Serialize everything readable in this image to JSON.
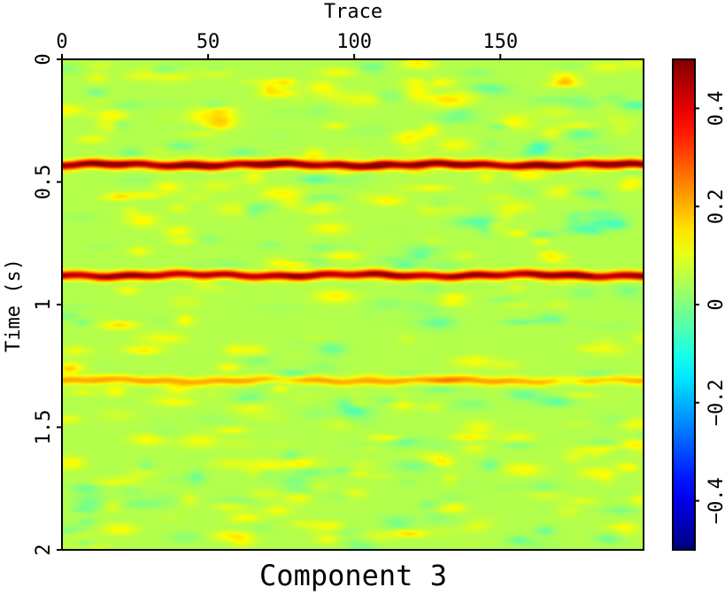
{
  "chart_data": {
    "type": "heatmap",
    "title": "Component 3",
    "xlabel": "Trace",
    "ylabel": "Time (s)",
    "x_axis_position": "top",
    "xlim": [
      0,
      199
    ],
    "ylim": [
      0,
      2
    ],
    "y_inverted": true,
    "x_ticks": [
      0,
      50,
      100,
      150
    ],
    "x_tick_labels": [
      "0",
      "50",
      "100",
      "150"
    ],
    "y_ticks": [
      0,
      0.5,
      1,
      1.5,
      2
    ],
    "y_tick_labels": [
      "0",
      "0.5",
      "1",
      "1.5",
      "2"
    ],
    "colorbar": {
      "colormap": "jet",
      "range": [
        -0.5,
        0.5
      ],
      "ticks": [
        -0.4,
        -0.2,
        0,
        0.2,
        0.4
      ],
      "tick_labels": [
        "−0.4",
        "−0.2",
        "0",
        "0.2",
        "0.4"
      ]
    },
    "background_level": 0.05,
    "events": [
      {
        "time_s": 0.43,
        "amplitude": 0.5
      },
      {
        "time_s": 0.88,
        "amplitude": 0.47
      },
      {
        "time_s": 1.31,
        "amplitude": 0.17
      }
    ]
  }
}
